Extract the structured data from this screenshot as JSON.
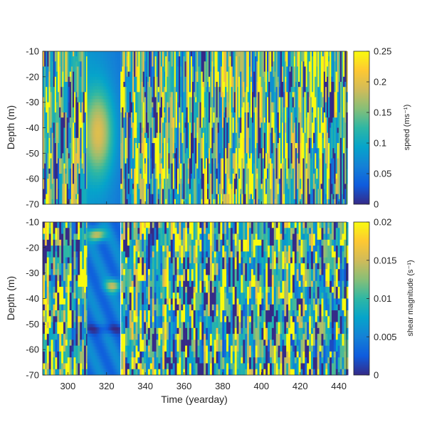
{
  "chart_data": [
    {
      "type": "heatmap",
      "panel": "top",
      "title": "",
      "xlabel": "",
      "ylabel": "Depth (m)",
      "xlim": [
        287,
        444
      ],
      "ylim": [
        -70,
        -10
      ],
      "x_ticks": [
        300,
        320,
        340,
        360,
        380,
        400,
        420,
        440
      ],
      "y_ticks": [
        -10,
        -20,
        -30,
        -40,
        -50,
        -60,
        -70
      ],
      "y_tick_labels": [
        "-10",
        "-20",
        "-30",
        "-40",
        "-50",
        "-60",
        "-70"
      ],
      "show_x_tick_labels": false,
      "colormap": "parula",
      "colorbar": {
        "label": "speed (ms⁻¹)",
        "range": [
          0,
          0.25
        ],
        "ticks": [
          0,
          0.05,
          0.1,
          0.15,
          0.2,
          0.25
        ],
        "tick_labels": [
          "0",
          "0.05",
          "0.1",
          "0.15",
          "0.2",
          "0.25"
        ]
      },
      "data_gap": {
        "x_range": [
          310,
          327
        ],
        "description_values": {
          "peak_speed": 0.2,
          "peak_depth_range": [
            -60,
            -25
          ],
          "surface_speed": 0.08
        }
      },
      "noise_levels": {
        "mean": 0.11,
        "spread": 0.25
      }
    },
    {
      "type": "heatmap",
      "panel": "bottom",
      "title": "",
      "xlabel": "Time (yearday)",
      "ylabel": "Depth (m)",
      "xlim": [
        287,
        444
      ],
      "ylim": [
        -70,
        -10
      ],
      "x_ticks": [
        300,
        320,
        340,
        360,
        380,
        400,
        420,
        440
      ],
      "x_tick_labels": [
        "300",
        "320",
        "340",
        "360",
        "380",
        "400",
        "420",
        "440"
      ],
      "y_ticks": [
        -10,
        -20,
        -30,
        -40,
        -50,
        -60,
        -70
      ],
      "y_tick_labels": [
        "-10",
        "-20",
        "-30",
        "-40",
        "-50",
        "-60",
        "-70"
      ],
      "show_x_tick_labels": true,
      "colormap": "parula",
      "colorbar": {
        "label": "shear magnitude (s⁻¹)",
        "range": [
          0,
          0.02
        ],
        "ticks": [
          0,
          0.005,
          0.01,
          0.015,
          0.02
        ],
        "tick_labels": [
          "0",
          "0.005",
          "0.01",
          "0.015",
          "0.02"
        ]
      },
      "data_gap": {
        "x_range": [
          310,
          327
        ],
        "description_values": {
          "typical_shear": 0.005,
          "features_at_depth": [
            -15,
            -35,
            -52
          ]
        }
      },
      "noise_levels": {
        "mean": 0.01,
        "spread": 0.02
      }
    }
  ]
}
